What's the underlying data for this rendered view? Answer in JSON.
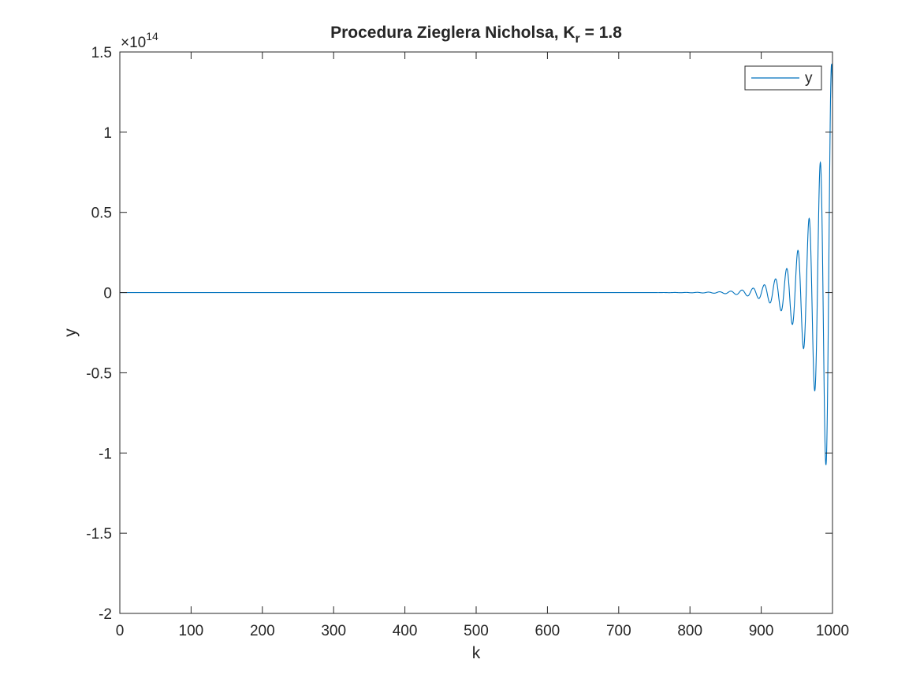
{
  "chart_data": {
    "type": "line",
    "title_main": "Procedura Zieglera Nicholsa, K",
    "title_sub": "r",
    "title_value": " =  1.8",
    "xlabel": "k",
    "ylabel": "y",
    "xlim": [
      0,
      1000
    ],
    "ylim": [
      -200000000000000.0,
      150000000000000.0
    ],
    "y_exponent_label": "×10",
    "y_exponent_power": "14",
    "x_ticks": [
      0,
      100,
      200,
      300,
      400,
      500,
      600,
      700,
      800,
      900,
      1000
    ],
    "x_tick_labels": [
      "0",
      "100",
      "200",
      "300",
      "400",
      "500",
      "600",
      "700",
      "800",
      "900",
      "1000"
    ],
    "y_ticks": [
      150000000000000.0,
      100000000000000.0,
      50000000000000.0,
      0,
      -50000000000000.0,
      -100000000000000.0,
      -150000000000000.0,
      -200000000000000.0
    ],
    "y_tick_labels": [
      "1.5",
      "1",
      "0.5",
      "0",
      "-0.5",
      "-1",
      "-1.5",
      "-2"
    ],
    "legend": {
      "placement": "top-right",
      "entries": [
        "y"
      ]
    },
    "grid": false,
    "series": [
      {
        "name": "y",
        "color": "#0072BD",
        "model": "growing oscillation",
        "period": 15.7,
        "growth_rate": 0.0358,
        "amplitude_at_end": 150000000000000.0,
        "x_end": 1000
      }
    ]
  }
}
